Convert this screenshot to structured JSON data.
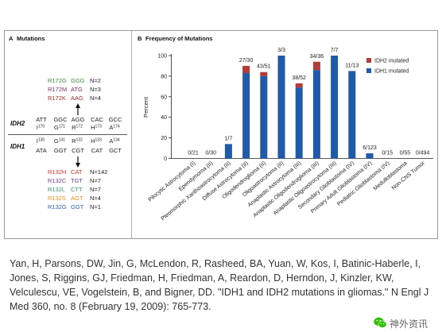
{
  "panel_a": {
    "label": "A",
    "title": "Mutations",
    "idh2": {
      "gene": "IDH2",
      "mutations": [
        {
          "aa": "R172G",
          "codon": "GGG",
          "n": "N=2",
          "color": "#3f8f3f"
        },
        {
          "aa": "R172M",
          "codon": "ATG",
          "n": "N=3",
          "color": "#7e2f66"
        },
        {
          "aa": "R172K",
          "codon": "AAG",
          "n": "N=4",
          "color": "#a42a2a"
        }
      ],
      "codons": [
        "ATT",
        "GGC",
        "AGG",
        "CAC",
        "GCC"
      ],
      "residues": [
        {
          "aa": "I",
          "pos": "170"
        },
        {
          "aa": "G",
          "pos": "171"
        },
        {
          "aa": "R",
          "pos": "172"
        },
        {
          "aa": "H",
          "pos": "173"
        },
        {
          "aa": "A",
          "pos": "174"
        }
      ]
    },
    "idh1": {
      "gene": "IDH1",
      "mutations": [
        {
          "aa": "R132H",
          "codon": "CAT",
          "n": "N=142",
          "color": "#c8322c"
        },
        {
          "aa": "R132C",
          "codon": "TGT",
          "n": "N=7",
          "color": "#6f3c8c"
        },
        {
          "aa": "R132L",
          "codon": "CTT",
          "n": "N=7",
          "color": "#3f8f6a"
        },
        {
          "aa": "R132S",
          "codon": "AGT",
          "n": "N=4",
          "color": "#e0901e"
        },
        {
          "aa": "R132G",
          "codon": "GGT",
          "n": "N=1",
          "color": "#2f5fb0"
        }
      ],
      "codons": [
        "ATA",
        "GGT",
        "CGT",
        "CAT",
        "GCT"
      ],
      "residues": [
        {
          "aa": "I",
          "pos": "130"
        },
        {
          "aa": "G",
          "pos": "131"
        },
        {
          "aa": "R",
          "pos": "132"
        },
        {
          "aa": "H",
          "pos": "133"
        },
        {
          "aa": "A",
          "pos": "134"
        }
      ]
    }
  },
  "chart_data": {
    "type": "bar",
    "stacked": true,
    "panel_label": "B",
    "title": "Frequency of Mutations",
    "xlabel": "",
    "ylabel": "Percent",
    "ylim": [
      0,
      100
    ],
    "yticks": [
      0,
      20,
      40,
      60,
      80,
      100
    ],
    "grid": false,
    "legend": "top-right",
    "categories": [
      "Pilocytic Astrocytoma (I)",
      "Ependymoma (II)",
      "Pleomorphic Xanthoastrocytoma (II)",
      "Diffuse Astrocytoma (II)",
      "Oligodendroglioma (II)",
      "Oligoastrocytoma (II)",
      "Anaplastic Astrocytoma (III)",
      "Anaplastic Oligodendroglioma (III)",
      "Anaplastic Oligoastrocytoma (III)",
      "Secondary Glioblastoma (IV)",
      "Primary Adult Glioblastoma (IV)",
      "Pediatric Glioblastoma (IV)",
      "Medulloblastoma",
      "Non-CNS Tumor"
    ],
    "bar_labels": [
      "0/21",
      "0/30",
      "1/7",
      "27/30",
      "43/51",
      "3/3",
      "38/52",
      "34/36",
      "7/7",
      "11/13",
      "6/123",
      "0/15",
      "0/55",
      "0/494"
    ],
    "series": [
      {
        "name": "IDH1 mutated",
        "color": "#1f5ba8",
        "values": [
          0,
          0,
          14,
          83,
          80,
          100,
          69,
          86,
          100,
          85,
          5,
          0,
          0,
          0
        ]
      },
      {
        "name": "IDH2 mutated",
        "color": "#b23c37",
        "values": [
          0,
          0,
          0,
          7,
          4,
          0,
          4,
          8,
          0,
          0,
          0,
          0,
          0,
          0
        ]
      }
    ]
  },
  "citation": {
    "lines": [
      "Yan, H, Parsons, DW, Jin, G, McLendon, R, Rasheed, BA, Yuan, W, Kos, I, Batinic-Haberle, I,",
      "Jones, S, Riggins, GJ, Friedman, H, Friedman, A, Reardon, D, Herndon, J, Kinzler, KW,",
      "Velculescu, VE, Vogelstein, B, and Bigner, DD. \"IDH1 and IDH2 mutations in gliomas.\" N Engl J",
      "Med 360, no. 8 (February 19, 2009): 765-773."
    ]
  },
  "watermark": {
    "icon": "wechat-icon",
    "text": "神外资讯",
    "color": "#2dc100"
  }
}
